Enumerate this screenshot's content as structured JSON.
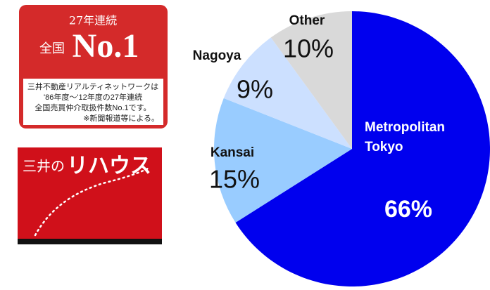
{
  "chart_data": {
    "type": "pie",
    "categories": [
      "Metropolitan Tokyo",
      "Kansai",
      "Nagoya",
      "Other"
    ],
    "values": [
      66,
      15,
      9,
      10
    ],
    "value_labels": [
      "66%",
      "15%",
      "9%",
      "10%"
    ],
    "colors": [
      "#0000ee",
      "#99ccff",
      "#cce0ff",
      "#d9d9d9"
    ]
  },
  "badge": {
    "years": "27年連続",
    "nationwide": "全国",
    "rank": "No.1",
    "lines": [
      "三井不動産リアルティネットワークは",
      "'86年度～'12年度の27年連続",
      "全国売買仲介取扱件数No.1です。"
    ],
    "note": "※新聞報道等による。"
  },
  "brand": {
    "prefix": "三井の",
    "name": "リハウス"
  }
}
